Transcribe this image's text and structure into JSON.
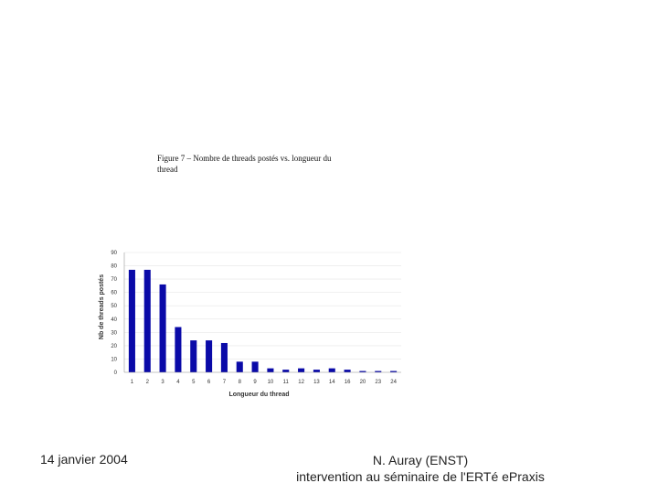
{
  "slide": {
    "date": "14 janvier 2004",
    "author": "N. Auray (ENST)",
    "event": "intervention au séminaire de l'ERTé ePraxis"
  },
  "chart_data": {
    "type": "bar",
    "title": "Figure 7 – Nombre de threads postés vs. longueur du thread",
    "xlabel": "Longueur du thread",
    "ylabel": "Nb de threads postés",
    "categories": [
      "1",
      "2",
      "3",
      "4",
      "5",
      "6",
      "7",
      "8",
      "9",
      "10",
      "11",
      "12",
      "13",
      "14",
      "16",
      "20",
      "23",
      "24"
    ],
    "values": [
      77,
      77,
      66,
      34,
      24,
      24,
      22,
      8,
      8,
      3,
      2,
      3,
      2,
      3,
      2,
      1,
      1,
      1
    ],
    "ylim": [
      0,
      90
    ],
    "yticks": [
      0,
      10,
      20,
      30,
      40,
      50,
      60,
      70,
      80,
      90
    ],
    "bar_color": "#0a0aa8",
    "grid": true,
    "legend": "none"
  }
}
